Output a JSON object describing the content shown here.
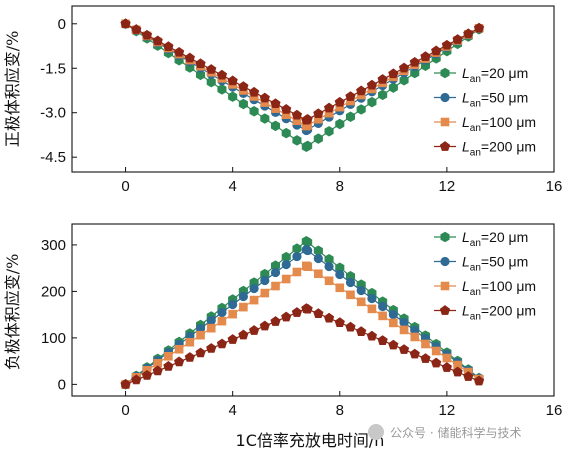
{
  "chart_data": [
    {
      "type": "line",
      "ylabel": "正极体积应变/%",
      "xlim": [
        -2,
        16
      ],
      "ylim": [
        -5,
        0.6
      ],
      "xticks": [
        0,
        4,
        8,
        12,
        16
      ],
      "yticks": [
        0,
        -1.5,
        -3.0,
        -4.5
      ],
      "ytick_labels": [
        "0",
        "-1.5",
        "-3.0",
        "-4.5"
      ],
      "grid": false,
      "legend_position": "right",
      "x_peak": 6.75,
      "x_end": 13.5,
      "x_step": 0.4,
      "series": [
        {
          "name_prefix": "L",
          "name_sub": "an",
          "name_suffix": "=20 μm",
          "color": "#2e8a54",
          "marker": "hexagon",
          "peak": -4.15
        },
        {
          "name_prefix": "L",
          "name_sub": "an",
          "name_suffix": "=50 μm",
          "color": "#2f6a94",
          "marker": "circle",
          "peak": -3.6
        },
        {
          "name_prefix": "L",
          "name_sub": "an",
          "name_suffix": "=100 μm",
          "color": "#e38a4c",
          "marker": "square",
          "peak": -3.45
        },
        {
          "name_prefix": "L",
          "name_sub": "an",
          "name_suffix": "=200 μm",
          "color": "#8b2516",
          "marker": "pentagon",
          "peak": -3.25
        }
      ]
    },
    {
      "type": "line",
      "ylabel": "负极体积应变/%",
      "xlabel": "1C倍率充放电时间/h",
      "xlim": [
        -2,
        16
      ],
      "ylim": [
        -25,
        345
      ],
      "xticks": [
        0,
        4,
        8,
        12,
        16
      ],
      "yticks": [
        0,
        100,
        200,
        300
      ],
      "ytick_labels": [
        "0",
        "100",
        "200",
        "300"
      ],
      "grid": false,
      "legend_position": "top-right",
      "x_peak": 6.75,
      "x_end": 13.5,
      "x_step": 0.4,
      "series": [
        {
          "name_prefix": "L",
          "name_sub": "an",
          "name_suffix": "=20 μm",
          "color": "#2e8a54",
          "marker": "hexagon",
          "peak": 308
        },
        {
          "name_prefix": "L",
          "name_sub": "an",
          "name_suffix": "=50 μm",
          "color": "#2f6a94",
          "marker": "circle",
          "peak": 290
        },
        {
          "name_prefix": "L",
          "name_sub": "an",
          "name_suffix": "=100 μm",
          "color": "#e38a4c",
          "marker": "square",
          "peak": 255
        },
        {
          "name_prefix": "L",
          "name_sub": "an",
          "name_suffix": "=200 μm",
          "color": "#8b2516",
          "marker": "pentagon",
          "peak": 163
        }
      ]
    }
  ],
  "watermark": "公众号 · 储能科学与技术"
}
